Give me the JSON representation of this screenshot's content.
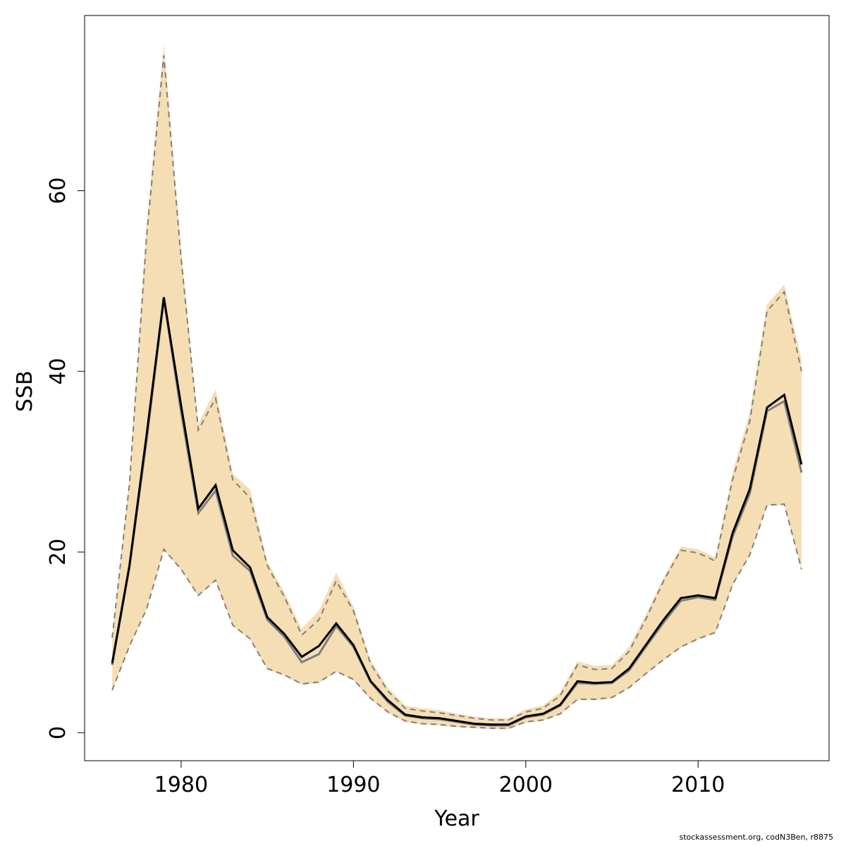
{
  "chart_data": {
    "type": "line",
    "xlabel": "Year",
    "ylabel": "SSB",
    "xlim": [
      1974.4,
      2017.6
    ],
    "ylim": [
      -3.1,
      79.4
    ],
    "x_ticks": [
      1980,
      1990,
      2000,
      2010
    ],
    "y_ticks": [
      0,
      20,
      40,
      60
    ],
    "grid": false,
    "band_color": "#f5deb3",
    "x": [
      1976,
      1977,
      1978,
      1979,
      1980,
      1981,
      1982,
      1983,
      1984,
      1985,
      1986,
      1987,
      1988,
      1989,
      1990,
      1991,
      1992,
      1993,
      1994,
      1995,
      1996,
      1997,
      1998,
      1999,
      2000,
      2001,
      2002,
      2003,
      2004,
      2005,
      2006,
      2007,
      2008,
      2009,
      2010,
      2011,
      2012,
      2013,
      2014,
      2015,
      2016
    ],
    "series": [
      {
        "role": "band",
        "upper": [
          10.7,
          28.2,
          56.3,
          76.2,
          53.5,
          34.2,
          38.0,
          28.7,
          26.9,
          19.0,
          15.5,
          11.5,
          13.5,
          17.7,
          14.0,
          8.0,
          5.0,
          3.0,
          2.7,
          2.5,
          2.1,
          1.8,
          1.6,
          1.6,
          2.6,
          3.0,
          4.5,
          7.9,
          7.4,
          7.5,
          9.5,
          13.2,
          17.2,
          20.6,
          20.3,
          19.4,
          28.8,
          35.5,
          47.4,
          49.6,
          41.3
        ],
        "lower": [
          4.6,
          9.5,
          13.6,
          20.2,
          18.0,
          15.1,
          16.8,
          11.8,
          10.3,
          7.0,
          6.3,
          5.3,
          5.5,
          6.7,
          5.8,
          3.7,
          2.2,
          1.2,
          0.9,
          0.8,
          0.6,
          0.5,
          0.4,
          0.4,
          1.1,
          1.3,
          2.0,
          3.6,
          3.6,
          3.8,
          4.9,
          6.5,
          8.0,
          9.4,
          10.3,
          11.0,
          16.3,
          19.6,
          25.1,
          25.2,
          18.0
        ]
      },
      {
        "role": "upper-dashed",
        "values": [
          10.5,
          27.5,
          55.0,
          75.0,
          52.5,
          33.5,
          37.0,
          28.0,
          26.0,
          18.5,
          15.0,
          10.8,
          12.5,
          16.8,
          13.5,
          7.6,
          4.6,
          2.7,
          2.4,
          2.2,
          1.9,
          1.6,
          1.4,
          1.4,
          2.3,
          2.7,
          4.1,
          7.5,
          7.0,
          7.1,
          9.0,
          12.7,
          16.8,
          20.2,
          19.9,
          19.0,
          28.0,
          34.5,
          46.7,
          48.8,
          40.0
        ]
      },
      {
        "role": "lower-dashed",
        "values": [
          4.7,
          9.6,
          13.7,
          20.3,
          18.1,
          15.2,
          16.9,
          11.9,
          10.4,
          7.1,
          6.4,
          5.4,
          5.6,
          6.8,
          5.9,
          3.8,
          2.3,
          1.3,
          1.0,
          0.9,
          0.7,
          0.6,
          0.5,
          0.5,
          1.2,
          1.4,
          2.1,
          3.7,
          3.7,
          3.9,
          5.0,
          6.6,
          8.1,
          9.5,
          10.4,
          11.1,
          16.4,
          19.7,
          25.2,
          25.3,
          18.1
        ]
      },
      {
        "role": "estimate-grey",
        "values": [
          7.5,
          18.3,
          32.4,
          48.0,
          35.5,
          24.3,
          26.8,
          19.6,
          17.9,
          12.5,
          10.6,
          7.8,
          8.7,
          11.8,
          9.5,
          5.6,
          3.4,
          1.9,
          1.6,
          1.5,
          1.2,
          0.9,
          0.8,
          0.8,
          1.7,
          2.0,
          3.0,
          5.5,
          5.4,
          5.5,
          6.9,
          9.6,
          12.2,
          14.6,
          15.0,
          14.7,
          21.7,
          26.5,
          35.6,
          36.7,
          28.8
        ]
      },
      {
        "role": "estimate-black",
        "values": [
          7.7,
          18.5,
          33.0,
          48.2,
          36.2,
          24.8,
          27.4,
          20.2,
          18.3,
          12.8,
          10.9,
          8.4,
          9.6,
          12.1,
          9.7,
          5.7,
          3.6,
          2.0,
          1.7,
          1.6,
          1.3,
          1.0,
          0.9,
          0.9,
          1.8,
          2.1,
          3.1,
          5.7,
          5.5,
          5.6,
          7.1,
          9.8,
          12.5,
          14.9,
          15.2,
          14.9,
          22.1,
          27.0,
          36.0,
          37.4,
          29.7
        ]
      }
    ]
  },
  "credit_text": "stockassessment.org, codN3Ben, r8875"
}
